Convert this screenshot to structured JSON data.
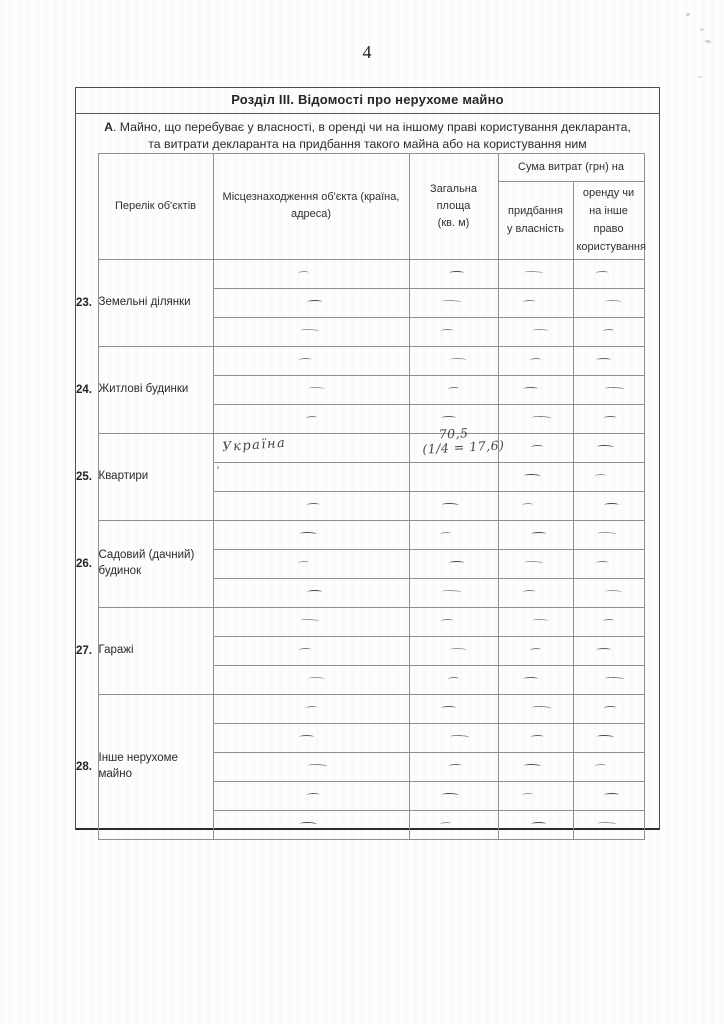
{
  "page_number": "4",
  "section": {
    "title": "Розділ III. Відомості про нерухоме майно",
    "subtitle_prefix": "А",
    "subtitle_line1": ". Майно, що перебуває у власності, в оренді чи на іншому праві користування декларанта,",
    "subtitle_line2": "та витрати декларанта на придбання такого майна або на користування ним"
  },
  "table": {
    "headers": {
      "objects": "Перелік об'єктів",
      "location": "Місцезнаходження об'єкта (країна, адреса)",
      "area": "Загальна площа\n(кв. м)",
      "costs_group": "Сума витрат (грн) на",
      "purchase": "придбання\nу власність",
      "rent": "оренду чи\nна інше право\nкористування"
    },
    "groups": [
      {
        "num": "23.",
        "label": "Земельні ділянки",
        "rows": [
          [
            {
              "v": "—"
            },
            {
              "v": "—"
            },
            {
              "v": "—"
            },
            {
              "v": "—"
            }
          ],
          [
            {
              "v": "—"
            },
            {
              "v": "—"
            },
            {
              "v": "—"
            },
            {
              "v": "—"
            }
          ],
          [
            {
              "v": "—"
            },
            {
              "v": "—"
            },
            {
              "v": "—"
            },
            {
              "v": "—"
            }
          ]
        ]
      },
      {
        "num": "24.",
        "label": "Житлові будинки",
        "rows": [
          [
            {
              "v": "—"
            },
            {
              "v": "—"
            },
            {
              "v": "—"
            },
            {
              "v": "—"
            }
          ],
          [
            {
              "v": "—"
            },
            {
              "v": "—"
            },
            {
              "v": "—"
            },
            {
              "v": "—"
            }
          ],
          [
            {
              "v": "—"
            },
            {
              "v": "—"
            },
            {
              "v": "—"
            },
            {
              "v": "—"
            }
          ]
        ]
      },
      {
        "num": "25.",
        "label": "Квартири",
        "rows": [
          [
            {
              "v": "Україна",
              "hw": true
            },
            {
              "v": "70,5",
              "v2": "(1/4 = 17,6)",
              "hw": true
            },
            {
              "v": "—"
            },
            {
              "v": "—"
            }
          ],
          [
            {
              "v": "'",
              "hw": true,
              "tick": true
            },
            {
              "v": ""
            },
            {
              "v": "—"
            },
            {
              "v": "—"
            }
          ],
          [
            {
              "v": "—"
            },
            {
              "v": "—"
            },
            {
              "v": "—"
            },
            {
              "v": "—"
            }
          ]
        ]
      },
      {
        "num": "26.",
        "label": "Садовий (дачний)\nбудинок",
        "rows": [
          [
            {
              "v": "—"
            },
            {
              "v": "—"
            },
            {
              "v": "—"
            },
            {
              "v": "—"
            }
          ],
          [
            {
              "v": "—"
            },
            {
              "v": "—"
            },
            {
              "v": "—"
            },
            {
              "v": "—"
            }
          ],
          [
            {
              "v": "—"
            },
            {
              "v": "—"
            },
            {
              "v": "—"
            },
            {
              "v": "—"
            }
          ]
        ]
      },
      {
        "num": "27.",
        "label": "Гаражі",
        "rows": [
          [
            {
              "v": "—"
            },
            {
              "v": "—"
            },
            {
              "v": "—"
            },
            {
              "v": "—"
            }
          ],
          [
            {
              "v": "—"
            },
            {
              "v": "—"
            },
            {
              "v": "—"
            },
            {
              "v": "—"
            }
          ],
          [
            {
              "v": "—"
            },
            {
              "v": "—"
            },
            {
              "v": "—"
            },
            {
              "v": "—"
            }
          ]
        ]
      },
      {
        "num": "28.",
        "label": "Інше нерухоме\nмайно",
        "rows": [
          [
            {
              "v": "—"
            },
            {
              "v": "—"
            },
            {
              "v": "—"
            },
            {
              "v": "—"
            }
          ],
          [
            {
              "v": "—"
            },
            {
              "v": "—"
            },
            {
              "v": "—"
            },
            {
              "v": "—"
            }
          ],
          [
            {
              "v": "—"
            },
            {
              "v": "—"
            },
            {
              "v": "—"
            },
            {
              "v": "—"
            }
          ],
          [
            {
              "v": "—"
            },
            {
              "v": "—"
            },
            {
              "v": "—"
            },
            {
              "v": "—"
            }
          ],
          [
            {
              "v": "—"
            },
            {
              "v": "—"
            },
            {
              "v": "—"
            },
            {
              "v": "—"
            }
          ]
        ]
      }
    ]
  }
}
